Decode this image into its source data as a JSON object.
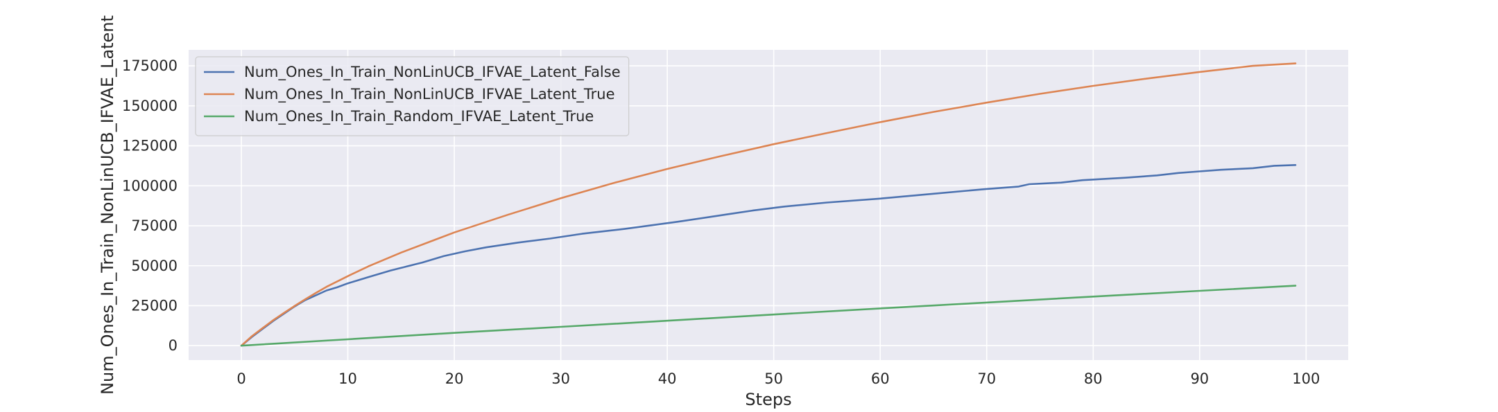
{
  "chart_data": {
    "type": "line",
    "xlabel": "Steps",
    "ylabel": "Num_Ones_In_Train_NonLinUCB_IFVAE_Latent",
    "xlim": [
      -4.95,
      103.95
    ],
    "ylim": [
      -9000,
      185000
    ],
    "xticks": [
      0,
      10,
      20,
      30,
      40,
      50,
      60,
      70,
      80,
      90,
      100
    ],
    "xtick_labels": [
      "0",
      "10",
      "20",
      "30",
      "40",
      "50",
      "60",
      "70",
      "80",
      "90",
      "100"
    ],
    "yticks": [
      0,
      25000,
      50000,
      75000,
      100000,
      125000,
      150000,
      175000
    ],
    "ytick_labels": [
      "0",
      "25000",
      "50000",
      "75000",
      "100000",
      "125000",
      "150000",
      "175000"
    ],
    "grid": true,
    "legend_position": "top-left",
    "series": [
      {
        "name": "Num_Ones_In_Train_NonLinUCB_IFVAE_Latent_False",
        "color": "#4c72b0",
        "x": [
          0,
          1,
          2,
          3,
          4,
          5,
          6,
          7,
          8,
          9,
          10,
          12,
          14,
          17,
          19,
          21,
          23,
          26,
          29,
          32,
          36,
          41,
          44,
          46,
          48,
          51,
          55,
          60,
          65,
          70,
          73,
          74,
          77,
          79,
          83,
          86,
          88,
          90,
          92,
          95,
          97,
          99
        ],
        "y": [
          0,
          5500,
          10500,
          15500,
          20000,
          24500,
          28500,
          31500,
          34500,
          36500,
          39000,
          43000,
          47000,
          52000,
          56000,
          59000,
          61500,
          64500,
          67000,
          70000,
          73000,
          77500,
          80500,
          82500,
          84500,
          87000,
          89500,
          92000,
          95000,
          98000,
          99500,
          101000,
          102000,
          103500,
          105000,
          106500,
          108000,
          109000,
          110000,
          111000,
          112500,
          113000
        ]
      },
      {
        "name": "Num_Ones_In_Train_NonLinUCB_IFVAE_Latent_True",
        "color": "#dd8452",
        "x": [
          0,
          1,
          2,
          3,
          4,
          5,
          6,
          7,
          8,
          10,
          12,
          15,
          20,
          25,
          30,
          35,
          40,
          45,
          50,
          55,
          60,
          65,
          70,
          75,
          80,
          85,
          90,
          95,
          99
        ],
        "y": [
          0,
          6000,
          11000,
          16000,
          20500,
          24800,
          29000,
          33000,
          36800,
          43500,
          49800,
          58200,
          70800,
          81800,
          92200,
          101800,
          110500,
          118500,
          126000,
          133000,
          139800,
          146200,
          152000,
          157500,
          162500,
          167000,
          171200,
          175000,
          176500
        ]
      },
      {
        "name": "Num_Ones_In_Train_Random_IFVAE_Latent_True",
        "color": "#55a868",
        "x": [
          0,
          10,
          20,
          30,
          40,
          50,
          60,
          70,
          80,
          90,
          99
        ],
        "y": [
          0,
          4000,
          8000,
          11800,
          15600,
          19500,
          23300,
          27000,
          30700,
          34300,
          37500
        ]
      }
    ]
  }
}
